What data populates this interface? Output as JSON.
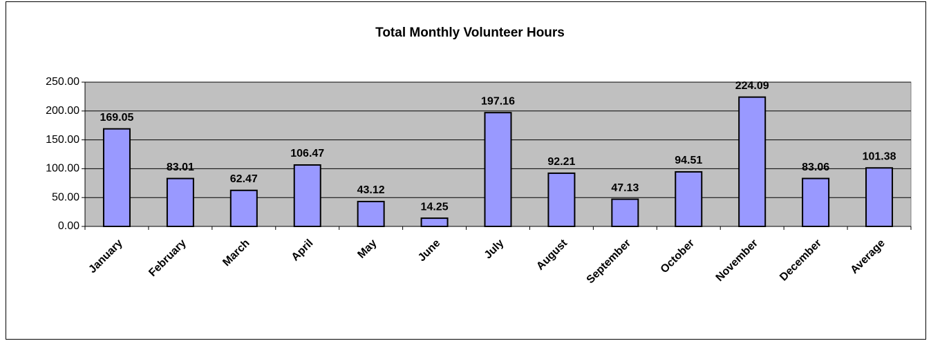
{
  "chart_data": {
    "type": "bar",
    "title": "Total Monthly Volunteer Hours",
    "categories": [
      "January",
      "February",
      "March",
      "April",
      "May",
      "June",
      "July",
      "August",
      "September",
      "October",
      "November",
      "December",
      "Average"
    ],
    "values": [
      169.05,
      83.01,
      62.47,
      106.47,
      43.12,
      14.25,
      197.16,
      92.21,
      47.13,
      94.51,
      224.09,
      83.06,
      101.38
    ],
    "color": "#9999ff",
    "ylim": [
      0,
      250
    ],
    "yticks": [
      {
        "value": 0,
        "label": "0.00"
      },
      {
        "value": 50,
        "label": "50.00"
      },
      {
        "value": 100,
        "label": "100.00"
      },
      {
        "value": 150,
        "label": "150.00"
      },
      {
        "value": 200,
        "label": "200.00"
      },
      {
        "value": 250,
        "label": "250.00"
      }
    ],
    "grid": true
  }
}
